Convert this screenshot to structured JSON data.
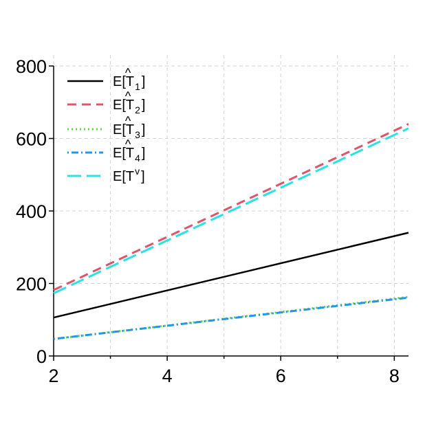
{
  "chart_data": {
    "type": "line",
    "title": "",
    "xlabel": "",
    "ylabel": "",
    "xlim": [
      2,
      8.25
    ],
    "ylim": [
      0,
      800
    ],
    "xticks": [
      2,
      4,
      6,
      8
    ],
    "yticks": [
      0,
      200,
      400,
      600,
      800
    ],
    "xminor": [
      3,
      5,
      7
    ],
    "grid": true,
    "legend_position": "top-left",
    "x": [
      2,
      8.25
    ],
    "series": [
      {
        "name": "E[T̂₁]",
        "base": "E[T",
        "hat": true,
        "sub": "1",
        "sup": "",
        "values": [
          106,
          340
        ],
        "color": "#000000",
        "dash": "",
        "width": 2.5
      },
      {
        "name": "E[T̂₂]",
        "base": "E[T",
        "hat": true,
        "sub": "2",
        "sup": "",
        "values": [
          182,
          640
        ],
        "color": "#DF536B",
        "dash": "13 8",
        "width": 3
      },
      {
        "name": "E[T̂₃]",
        "base": "E[T",
        "hat": true,
        "sub": "3",
        "sup": "",
        "values": [
          47,
          163
        ],
        "color": "#61D04F",
        "dash": "2 4",
        "width": 3
      },
      {
        "name": "E[T̂₄]",
        "base": "E[T",
        "hat": true,
        "sub": "4",
        "sup": "",
        "values": [
          47,
          161
        ],
        "color": "#2297E6",
        "dash": "2 4 10 4",
        "width": 3
      },
      {
        "name": "E[Tᵛ]",
        "base": "E[T",
        "hat": false,
        "sub": "",
        "sup": "v",
        "values": [
          173,
          628
        ],
        "color": "#28E2E5",
        "dash": "20 8",
        "width": 3
      }
    ]
  }
}
